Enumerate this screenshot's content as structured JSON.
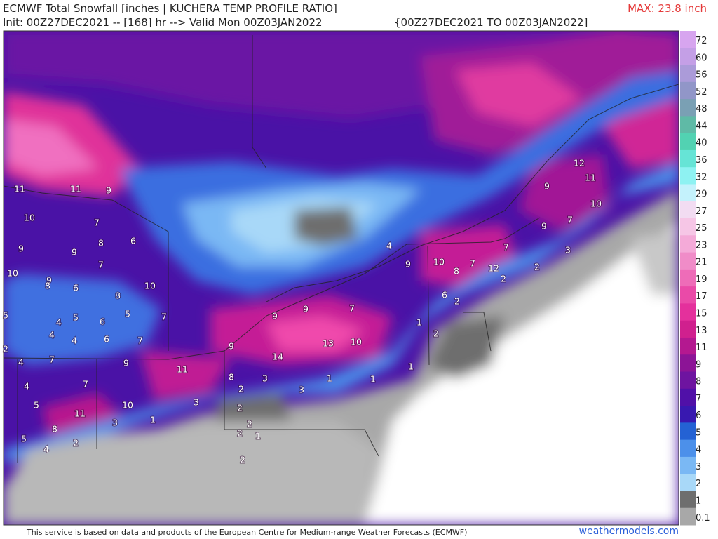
{
  "header": {
    "title": "ECMWF Total Snowfall [inches | KUCHERA TEMP PROFILE RATIO]",
    "init": "Init: 00Z27DEC2021 -- [168] hr --> Valid Mon 00Z03JAN2022",
    "range": "{00Z27DEC2021 TO 00Z03JAN2022]",
    "max": "MAX: 23.8 inch"
  },
  "colorbar": [
    {
      "label": "72",
      "color": "#d7a5ef"
    },
    {
      "label": "60",
      "color": "#c49fe6"
    },
    {
      "label": "56",
      "color": "#ab9bd9"
    },
    {
      "label": "52",
      "color": "#9196c8"
    },
    {
      "label": "48",
      "color": "#7aa0b4"
    },
    {
      "label": "44",
      "color": "#5fbaa6"
    },
    {
      "label": "40",
      "color": "#52d2b2"
    },
    {
      "label": "36",
      "color": "#66e4d6"
    },
    {
      "label": "32",
      "color": "#8ef2f2"
    },
    {
      "label": "29",
      "color": "#c4f2fc"
    },
    {
      "label": "27",
      "color": "#f2dcf2"
    },
    {
      "label": "25",
      "color": "#f6c6e6"
    },
    {
      "label": "23",
      "color": "#f4aad8"
    },
    {
      "label": "21",
      "color": "#f08cc8"
    },
    {
      "label": "19",
      "color": "#ee6cb8"
    },
    {
      "label": "17",
      "color": "#ea4aa8"
    },
    {
      "label": "15",
      "color": "#e4309c"
    },
    {
      "label": "13",
      "color": "#d0208e"
    },
    {
      "label": "11",
      "color": "#b41890"
    },
    {
      "label": "9",
      "color": "#8c1496"
    },
    {
      "label": "8",
      "color": "#6e14a0"
    },
    {
      "label": "7",
      "color": "#5010a8"
    },
    {
      "label": "6",
      "color": "#3818b0"
    },
    {
      "label": "5",
      "color": "#2462d4"
    },
    {
      "label": "4",
      "color": "#4c90ea"
    },
    {
      "label": "3",
      "color": "#7ab8f4"
    },
    {
      "label": "2",
      "color": "#a8d8f8"
    },
    {
      "label": "1",
      "color": "#6e6e6e"
    },
    {
      "label": "0.1",
      "color": "#a8a8a8"
    }
  ],
  "map_labels": [
    "11",
    "11",
    "9",
    "10",
    "7",
    "9",
    "9",
    "8",
    "6",
    "7",
    "10",
    "9",
    "8",
    "6",
    "10",
    "8",
    "5",
    "4",
    "5",
    "6",
    "5",
    "7",
    "4",
    "4",
    "6",
    "7",
    "2",
    "4",
    "7",
    "9",
    "11",
    "9",
    "9",
    "9",
    "7",
    "13",
    "10",
    "14",
    "8",
    "2",
    "3",
    "3",
    "4",
    "7",
    "5",
    "11",
    "10",
    "3",
    "8",
    "3",
    "1",
    "5",
    "4",
    "2",
    "2",
    "2",
    "2",
    "1",
    "2",
    "1",
    "1",
    "1",
    "2",
    "6",
    "2",
    "9",
    "10",
    "8",
    "7",
    "12",
    "7",
    "2",
    "4",
    "12",
    "11",
    "9",
    "10",
    "9",
    "7",
    "3",
    "2",
    "1"
  ],
  "footer": {
    "credit": "This service is based on data and products of the European Centre for Medium-range Weather Forecasts (ECMWF)",
    "site": "weathermodels.com"
  }
}
